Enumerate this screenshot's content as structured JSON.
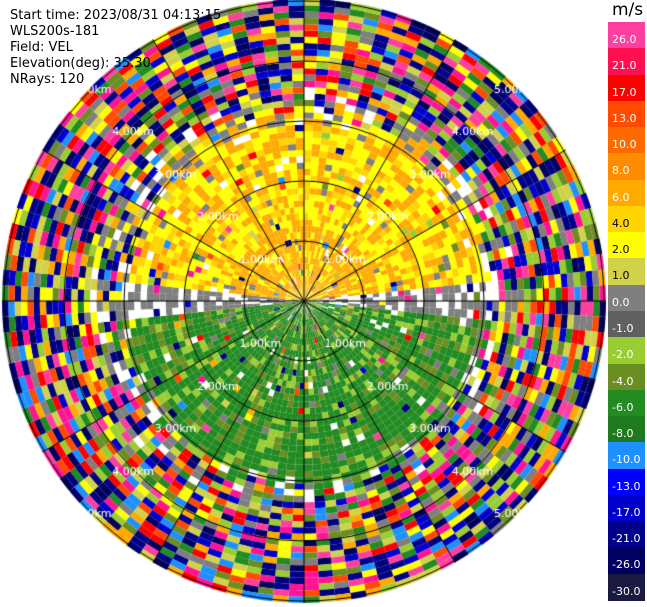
{
  "header": {
    "start_time": "Start time: 2023/08/31 04:13:15",
    "instrument": "WLS200s-181",
    "field": "Field: VEL",
    "elevation": "Elevation(deg): 35.30",
    "nrays": "NRays: 120"
  },
  "colorbar": {
    "unit": "m/s",
    "ticks": [
      "26.0",
      "21.0",
      "17.0",
      "13.0",
      "10.0",
      "8.0",
      "6.0",
      "4.0",
      "2.0",
      "1.0",
      "0.0",
      "-1.0",
      "-2.0",
      "-4.0",
      "-6.0",
      "-8.0",
      "-10.0",
      "-13.0",
      "-17.0",
      "-21.0",
      "-26.0",
      "-30.0"
    ],
    "colors": [
      "#ff3fa0",
      "#ff1050",
      "#ff0000",
      "#ff4a00",
      "#ff6a00",
      "#ff8c00",
      "#ffaa00",
      "#ffd400",
      "#ffff00",
      "#d2d24a",
      "#7f7f7f",
      "#606060",
      "#9acd32",
      "#6b8e23",
      "#228b22",
      "#1e7a1e",
      "#1e90ff",
      "#0000ff",
      "#0000cd",
      "#00008b",
      "#000060",
      "#1a1a40"
    ]
  },
  "range_labels": [
    "1.00km",
    "2.00km",
    "3.00km",
    "4.00km",
    "5.00km"
  ]
}
